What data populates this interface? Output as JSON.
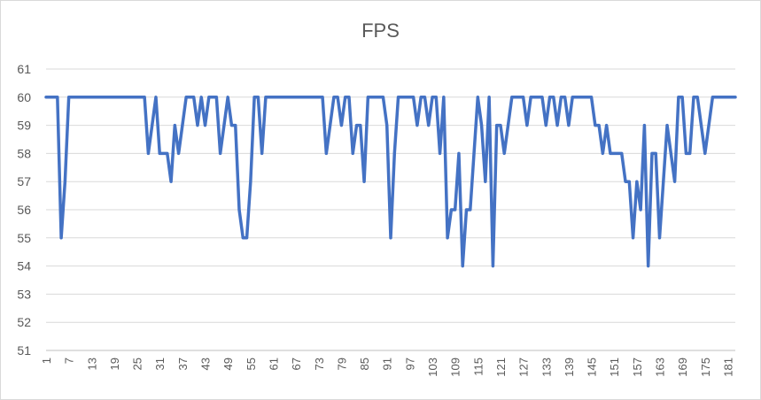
{
  "chart_data": {
    "type": "line",
    "title": "FPS",
    "xlabel": "",
    "ylabel": "",
    "ylim": [
      51,
      61
    ],
    "yticks": [
      51,
      52,
      53,
      54,
      55,
      56,
      57,
      58,
      59,
      60,
      61
    ],
    "x_tick_labels": [
      "1",
      "7",
      "13",
      "19",
      "25",
      "31",
      "37",
      "43",
      "49",
      "55",
      "61",
      "67",
      "73",
      "79",
      "85",
      "91",
      "97",
      "103",
      "109",
      "115",
      "121",
      "127",
      "133",
      "139",
      "145",
      "151",
      "157",
      "163",
      "169",
      "175",
      "181"
    ],
    "grid": true,
    "legend": "none",
    "series": [
      {
        "color": "#4472c4",
        "x": [
          1,
          2,
          3,
          4,
          5,
          6,
          7,
          8,
          9,
          10,
          11,
          12,
          13,
          14,
          15,
          16,
          17,
          18,
          19,
          20,
          21,
          22,
          23,
          24,
          25,
          26,
          27,
          28,
          29,
          30,
          31,
          32,
          33,
          34,
          35,
          36,
          37,
          38,
          39,
          40,
          41,
          42,
          43,
          44,
          45,
          46,
          47,
          48,
          49,
          50,
          51,
          52,
          53,
          54,
          55,
          56,
          57,
          58,
          59,
          60,
          61,
          62,
          63,
          64,
          65,
          66,
          67,
          68,
          69,
          70,
          71,
          72,
          73,
          74,
          75,
          76,
          77,
          78,
          79,
          80,
          81,
          82,
          83,
          84,
          85,
          86,
          87,
          88,
          89,
          90,
          91,
          92,
          93,
          94,
          95,
          96,
          97,
          98,
          99,
          100,
          101,
          102,
          103,
          104,
          105,
          106,
          107,
          108,
          109,
          110,
          111,
          112,
          113,
          114,
          115,
          116,
          117,
          118,
          119,
          120,
          121,
          122,
          123,
          124,
          125,
          126,
          127,
          128,
          129,
          130,
          131,
          132,
          133,
          134,
          135,
          136,
          137,
          138,
          139,
          140,
          141,
          142,
          143,
          144,
          145,
          146,
          147,
          148,
          149,
          150,
          151,
          152,
          153,
          154,
          155,
          156,
          157,
          158,
          159,
          160,
          161,
          162,
          163,
          164,
          165,
          166,
          167,
          168,
          169,
          170,
          171,
          172,
          173,
          174,
          175,
          176,
          177,
          178,
          179,
          180,
          181,
          182,
          183
        ],
        "y": [
          60,
          60,
          60,
          60,
          55,
          57,
          60,
          60,
          60,
          60,
          60,
          60,
          60,
          60,
          60,
          60,
          60,
          60,
          60,
          60,
          60,
          60,
          60,
          60,
          60,
          60,
          60,
          58,
          59,
          60,
          58,
          58,
          58,
          57,
          59,
          58,
          59,
          60,
          60,
          60,
          59,
          60,
          59,
          60,
          60,
          60,
          58,
          59,
          60,
          59,
          59,
          56,
          55,
          55,
          57,
          60,
          60,
          58,
          60,
          60,
          60,
          60,
          60,
          60,
          60,
          60,
          60,
          60,
          60,
          60,
          60,
          60,
          60,
          60,
          58,
          59,
          60,
          60,
          59,
          60,
          60,
          58,
          59,
          59,
          57,
          60,
          60,
          60,
          60,
          60,
          59,
          55,
          58,
          60,
          60,
          60,
          60,
          60,
          59,
          60,
          60,
          59,
          60,
          60,
          58,
          60,
          55,
          56,
          56,
          58,
          54,
          56,
          56,
          58,
          60,
          59,
          57,
          60,
          54,
          59,
          59,
          58,
          59,
          60,
          60,
          60,
          60,
          59,
          60,
          60,
          60,
          60,
          59,
          60,
          60,
          59,
          60,
          60,
          59,
          60,
          60,
          60,
          60,
          60,
          60,
          59,
          59,
          58,
          59,
          58,
          58,
          58,
          58,
          57,
          57,
          55,
          57,
          56,
          59,
          54,
          58,
          58,
          55,
          57,
          59,
          58,
          57,
          60,
          60,
          58,
          58,
          60,
          60,
          59,
          58,
          59,
          60,
          60,
          60,
          60,
          60,
          60,
          60
        ]
      }
    ]
  }
}
